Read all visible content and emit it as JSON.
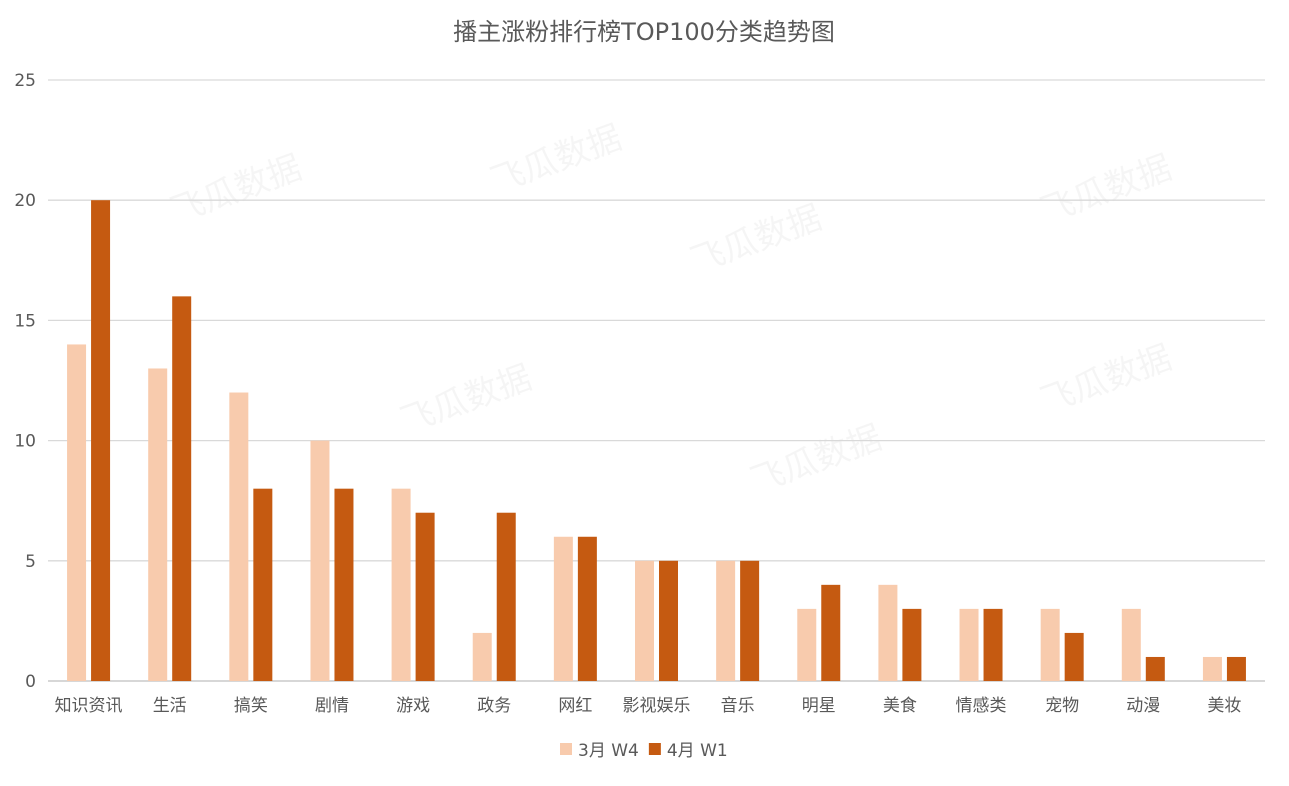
{
  "chart_data": {
    "type": "bar",
    "title": "播主涨粉排行榜TOP100分类趋势图",
    "categories": [
      "知识资讯",
      "生活",
      "搞笑",
      "剧情",
      "游戏",
      "政务",
      "网红",
      "影视娱乐",
      "音乐",
      "明星",
      "美食",
      "情感类",
      "宠物",
      "动漫",
      "美妆"
    ],
    "series": [
      {
        "name": "3月 W4",
        "color": "#F8CBAD",
        "values": [
          14,
          13,
          12,
          10,
          8,
          2,
          6,
          5,
          5,
          3,
          4,
          3,
          3,
          3,
          1
        ]
      },
      {
        "name": "4月 W1",
        "color": "#C55A11",
        "values": [
          20,
          16,
          8,
          8,
          7,
          7,
          6,
          5,
          5,
          4,
          3,
          3,
          2,
          1,
          1
        ]
      }
    ],
    "xlabel": "",
    "ylabel": "",
    "ylim": [
      0,
      25
    ],
    "yticks": [
      0,
      5,
      10,
      15,
      20,
      25
    ],
    "grid": true,
    "legend": "bottom",
    "watermark": "飞瓜数据"
  }
}
